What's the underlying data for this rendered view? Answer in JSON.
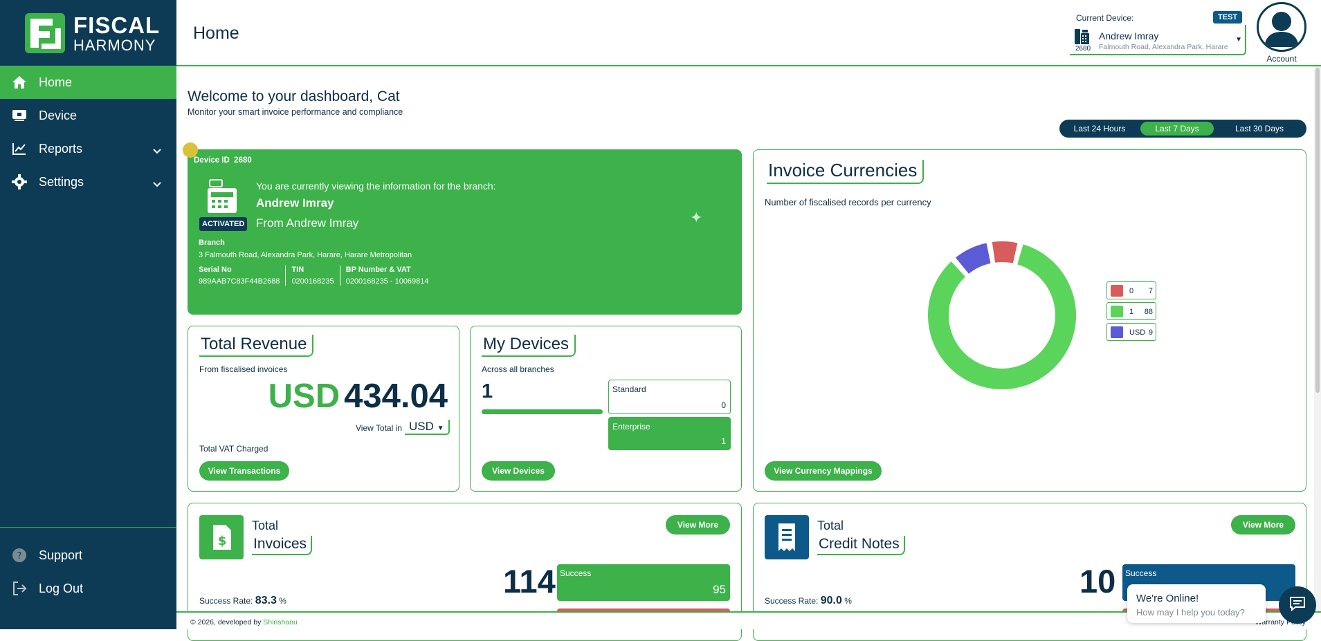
{
  "brand": {
    "line1": "FISCAL",
    "line2": "HARMONY",
    "green": "#3db14a",
    "navy": "#0d3b55"
  },
  "sidebar": {
    "items": [
      {
        "label": "Home",
        "icon": "home-icon",
        "active": true
      },
      {
        "label": "Device",
        "icon": "device-icon"
      },
      {
        "label": "Reports",
        "icon": "chart-line-icon",
        "expandable": true
      },
      {
        "label": "Settings",
        "icon": "gear-icon",
        "expandable": true
      }
    ],
    "bottom": [
      {
        "label": "Support",
        "icon": "help-icon"
      },
      {
        "label": "Log Out",
        "icon": "logout-icon"
      }
    ]
  },
  "header": {
    "title": "Home",
    "current_device_label": "Current Device:",
    "test_badge": "TEST",
    "device_number": "2680",
    "device_name": "Andrew Imray",
    "device_address": "Falmouth Road, Alexandra Park, Harare",
    "account_label": "Account"
  },
  "welcome": {
    "title": "Welcome to your dashboard, Cat",
    "subtitle": "Monitor your smart invoice performance and compliance"
  },
  "time_range": {
    "options": [
      "Last 24 Hours",
      "Last 7 Days",
      "Last 30 Days"
    ],
    "selected": "Last 7 Days"
  },
  "branch_card": {
    "device_id_label": "Device ID",
    "device_id": "2680",
    "status": "ACTIVATED",
    "viewing_text": "You are currently viewing the information for the branch:",
    "branch_name": "Andrew Imray",
    "from_text": "From Andrew Imray",
    "branch_label": "Branch",
    "branch_address": "3 Falmouth Road, Alexandra Park, Harare, Harare Metropolitan",
    "fields": [
      {
        "label": "Serial No",
        "value": "989AAB7C83F44B2688"
      },
      {
        "label": "TIN",
        "value": "0200168235"
      },
      {
        "label": "BP Number & VAT",
        "value": "0200168235 - 10069814"
      }
    ]
  },
  "revenue": {
    "title": "Total Revenue",
    "subtitle": "From fiscalised invoices",
    "currency": "USD",
    "amount": "434.04",
    "view_total_label": "View Total in",
    "view_total_currency": "USD",
    "vat_label": "Total VAT Charged",
    "button": "View Transactions"
  },
  "devices": {
    "title": "My Devices",
    "subtitle": "Across all branches",
    "count": "1",
    "types": [
      {
        "label": "Standard",
        "value": "0"
      },
      {
        "label": "Enterprise",
        "value": "1"
      }
    ],
    "button": "View Devices"
  },
  "currencies": {
    "title": "Invoice Currencies",
    "subtitle": "Number of fiscalised records per currency",
    "button": "View Currency Mappings",
    "chart_data": {
      "type": "pie",
      "categories": [
        "0",
        "1",
        "USD"
      ],
      "values": [
        7,
        88,
        9
      ],
      "colors": [
        "#d95c5c",
        "#5ad45a",
        "#5b5bd6"
      ],
      "legend_position": "right"
    }
  },
  "invoices": {
    "label": "Total",
    "title": "Invoices",
    "total": "114",
    "success_rate_label": "Success Rate:",
    "success_rate": "83.3",
    "success_rate_unit": "%",
    "success_label": "Success",
    "success_value": "95",
    "button": "View More"
  },
  "credit_notes": {
    "label": "Total",
    "title": "Credit Notes",
    "total": "10",
    "success_rate_label": "Success Rate:",
    "success_rate": "90.0",
    "success_rate_unit": "%",
    "success_label": "Success",
    "button": "View More"
  },
  "chat": {
    "line1": "We're Online!",
    "line2": "How may I help you today?"
  },
  "footer": {
    "copyright": "© 2026, developed by",
    "developer": "Shirishanu",
    "right_text": "Warranty Policy"
  }
}
